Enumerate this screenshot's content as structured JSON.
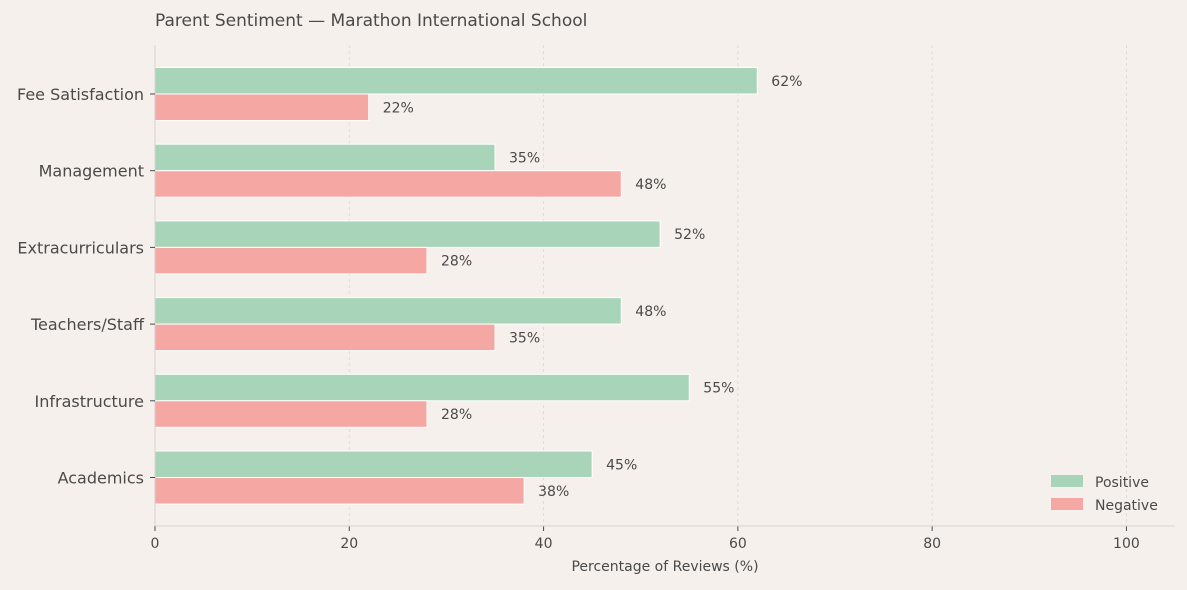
{
  "chart_data": {
    "type": "bar",
    "orientation": "horizontal",
    "title": "Parent Sentiment — Marathon International School",
    "xlabel": "Percentage of Reviews (%)",
    "ylabel": "",
    "categories": [
      "Fee Satisfaction",
      "Management",
      "Extracurriculars",
      "Teachers/Staff",
      "Infrastructure",
      "Academics"
    ],
    "series": [
      {
        "name": "Positive",
        "values": [
          62,
          35,
          52,
          48,
          55,
          45
        ],
        "color": "#a8d5ba"
      },
      {
        "name": "Negative",
        "values": [
          22,
          48,
          28,
          35,
          28,
          38
        ],
        "color": "#f5a7a3"
      }
    ],
    "value_label_suffix": "%",
    "xlim": [
      0,
      105
    ],
    "xticks": [
      0,
      20,
      40,
      60,
      80,
      100
    ],
    "grid": "vertical dashed",
    "legend": "bottom-right",
    "background": "#f5f0ec"
  }
}
